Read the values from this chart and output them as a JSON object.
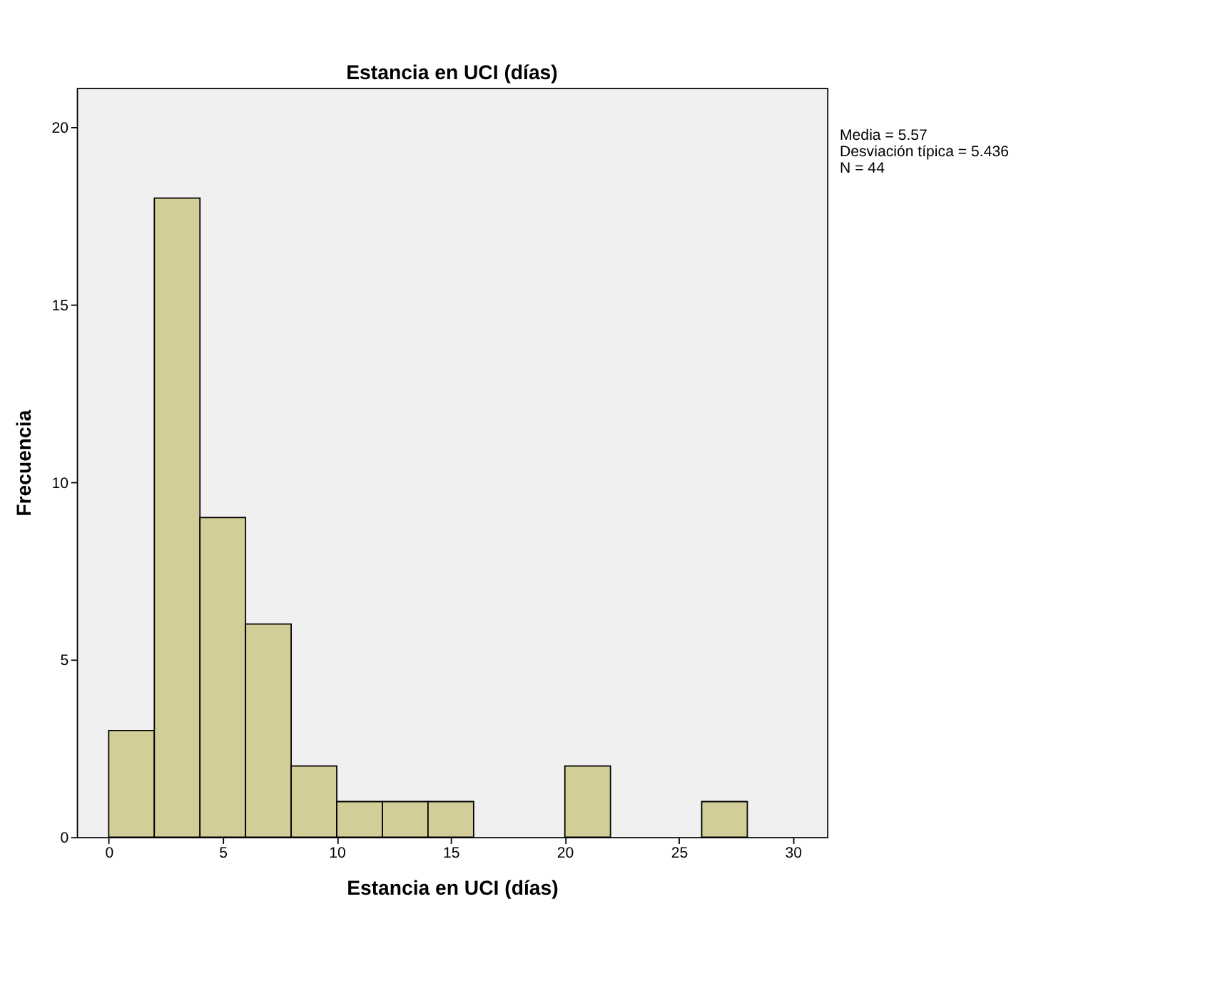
{
  "chart_data": {
    "type": "histogram",
    "title": "Estancia en UCI (días)",
    "xlabel": "Estancia en UCI (días)",
    "ylabel": "Frecuencia",
    "bins": [
      0,
      2,
      4,
      6,
      8,
      10,
      12,
      14,
      16,
      18,
      20,
      22,
      24,
      26,
      28
    ],
    "values": [
      3,
      18,
      9,
      6,
      2,
      1,
      1,
      1,
      0,
      0,
      2,
      0,
      0,
      1
    ],
    "color": "#d3ce98",
    "xlim": [
      -1.4,
      31.5
    ],
    "xticks": [
      0,
      5,
      10,
      15,
      20,
      25,
      30
    ],
    "ylim": [
      0,
      21.1
    ],
    "yticks": [
      0,
      5,
      10,
      15,
      20
    ],
    "grid": false,
    "annotations": [
      "Media = 5.57",
      "Desviación típica = 5.436",
      "N = 44"
    ]
  }
}
